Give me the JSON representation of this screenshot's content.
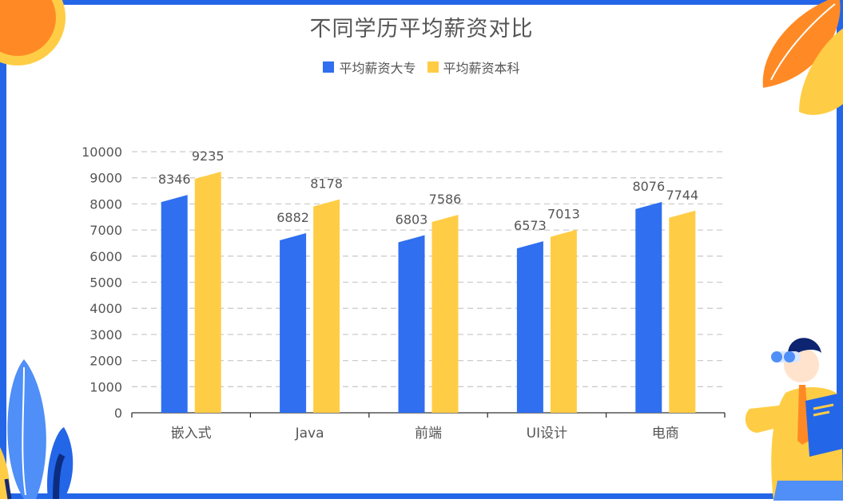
{
  "colors": {
    "frame": "#2466e8",
    "series_blue": "#2f6ff0",
    "series_yellow": "#ffcd45",
    "text": "#555555",
    "grid": "#cccccc"
  },
  "chart_data": {
    "type": "bar",
    "title": "不同学历平均薪资对比",
    "categories": [
      "嵌入式",
      "Java",
      "前端",
      "UI设计",
      "电商"
    ],
    "series": [
      {
        "name": "平均薪资大专",
        "values": [
          8346,
          6882,
          6803,
          6573,
          8076
        ],
        "color": "#2f6ff0"
      },
      {
        "name": "平均薪资本科",
        "values": [
          9235,
          8178,
          7586,
          7013,
          7744
        ],
        "color": "#ffcd45"
      }
    ],
    "ylim": [
      0,
      10000
    ],
    "yticks": [
      0,
      1000,
      2000,
      3000,
      4000,
      5000,
      6000,
      7000,
      8000,
      9000,
      10000
    ],
    "grid": true,
    "legend": "top-center",
    "xlabel": "",
    "ylabel": ""
  }
}
